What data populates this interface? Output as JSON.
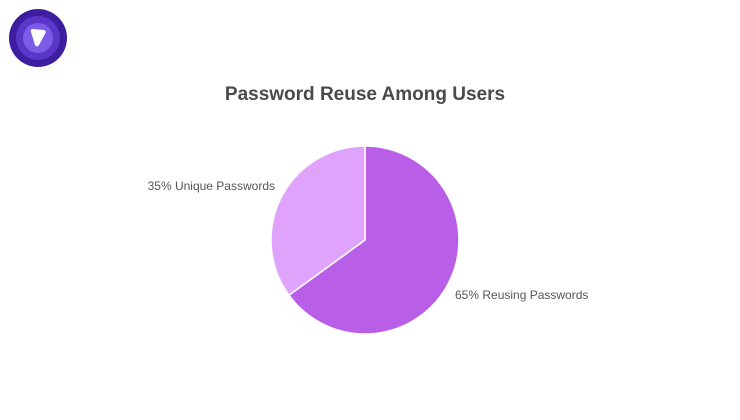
{
  "chart_data": {
    "type": "pie",
    "title": "Password Reuse Among Users",
    "slices": [
      {
        "label": "65% Reusing Passwords",
        "value": 65,
        "color": "#b95ee6"
      },
      {
        "label": "35% Unique Passwords",
        "value": 35,
        "color": "#e0a3fb"
      }
    ],
    "legend": "none"
  },
  "logo": {
    "colors": [
      "#3d1ea0",
      "#5a36c9",
      "#7b5be8",
      "#ffffff"
    ]
  }
}
